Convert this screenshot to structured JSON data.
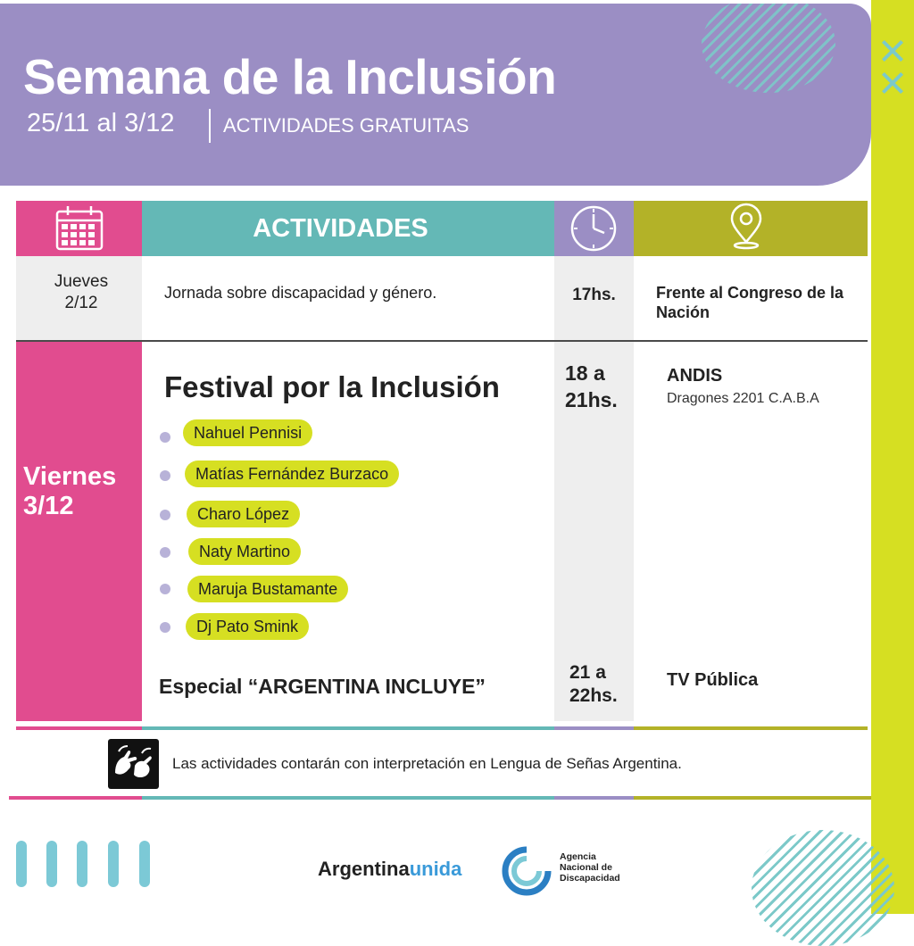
{
  "header": {
    "title": "Semana de la Inclusión",
    "dates": "25/11 al 3/12",
    "subtitle": "ACTIVIDADES GRATUITAS"
  },
  "table": {
    "header": {
      "activities_label": "ACTIVIDADES",
      "icons": [
        "calendar-icon",
        "clock-icon",
        "location-pin-icon"
      ]
    },
    "row1": {
      "day": "Jueves",
      "date": "2/12",
      "activity": "Jornada sobre discapacidad y género.",
      "time": "17hs.",
      "place_line1": "Frente al Congreso de la",
      "place_line2": "Nación"
    },
    "row2": {
      "day": "Viernes",
      "date": "3/12",
      "festival_title": "Festival por la Inclusión",
      "festival_time_line1": "18 a",
      "festival_time_line2": "21hs.",
      "festival_place": "ANDIS",
      "festival_address": "Dragones 2201 C.A.B.A",
      "artists": [
        "Nahuel Pennisi",
        "Matías Fernández Burzaco",
        "Charo López",
        "Naty Martino",
        "Maruja Bustamante",
        "Dj Pato Smink"
      ],
      "special": "Especial “ARGENTINA INCLUYE”",
      "special_time_line1": "21 a",
      "special_time_line2": "22hs.",
      "special_place": "TV Pública"
    }
  },
  "note": "Las actividades contarán con interpretación en Lengua de Señas Argentina.",
  "footer": {
    "brand_a": "Argentina",
    "brand_b": "unida",
    "agency_line1": "Agencia",
    "agency_line2": "Nacional de",
    "agency_line3": "Discapacidad"
  },
  "colors": {
    "purple": "#9b8ec4",
    "pink": "#e14c8f",
    "teal": "#64b8b6",
    "olive": "#b3b228",
    "lime": "#d6df22"
  }
}
